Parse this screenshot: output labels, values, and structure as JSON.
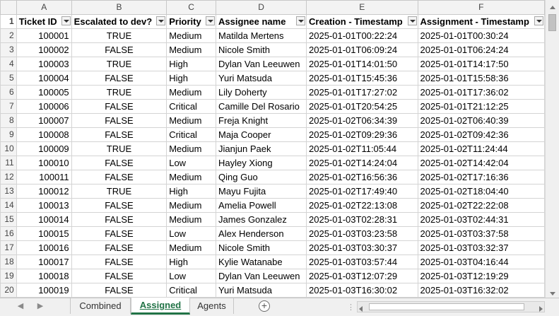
{
  "columns": [
    "A",
    "B",
    "C",
    "D",
    "E",
    "F"
  ],
  "row_numbers": [
    1,
    2,
    3,
    4,
    5,
    6,
    7,
    8,
    9,
    10,
    11,
    12,
    13,
    14,
    15,
    16,
    17,
    18,
    19,
    20
  ],
  "headers": {
    "ticket_id": "Ticket ID",
    "escalated": "Escalated to dev?",
    "priority": "Priority",
    "assignee": "Assignee name",
    "creation": "Creation - Timestamp",
    "assignment": "Assignment - Timestamp"
  },
  "rows": [
    {
      "id": "100001",
      "esc": "TRUE",
      "pri": "Medium",
      "name": "Matilda Mertens",
      "created": "2025-01-01T00:22:24",
      "assigned": "2025-01-01T00:30:24"
    },
    {
      "id": "100002",
      "esc": "FALSE",
      "pri": "Medium",
      "name": "Nicole Smith",
      "created": "2025-01-01T06:09:24",
      "assigned": "2025-01-01T06:24:24"
    },
    {
      "id": "100003",
      "esc": "TRUE",
      "pri": "High",
      "name": "Dylan Van Leeuwen",
      "created": "2025-01-01T14:01:50",
      "assigned": "2025-01-01T14:17:50"
    },
    {
      "id": "100004",
      "esc": "FALSE",
      "pri": "High",
      "name": "Yuri Matsuda",
      "created": "2025-01-01T15:45:36",
      "assigned": "2025-01-01T15:58:36"
    },
    {
      "id": "100005",
      "esc": "TRUE",
      "pri": "Medium",
      "name": "Lily Doherty",
      "created": "2025-01-01T17:27:02",
      "assigned": "2025-01-01T17:36:02"
    },
    {
      "id": "100006",
      "esc": "FALSE",
      "pri": "Critical",
      "name": "Camille Del Rosario",
      "created": "2025-01-01T20:54:25",
      "assigned": "2025-01-01T21:12:25"
    },
    {
      "id": "100007",
      "esc": "FALSE",
      "pri": "Medium",
      "name": "Freja Knight",
      "created": "2025-01-02T06:34:39",
      "assigned": "2025-01-02T06:40:39"
    },
    {
      "id": "100008",
      "esc": "FALSE",
      "pri": "Critical",
      "name": "Maja Cooper",
      "created": "2025-01-02T09:29:36",
      "assigned": "2025-01-02T09:42:36"
    },
    {
      "id": "100009",
      "esc": "TRUE",
      "pri": "Medium",
      "name": "Jianjun Paek",
      "created": "2025-01-02T11:05:44",
      "assigned": "2025-01-02T11:24:44"
    },
    {
      "id": "100010",
      "esc": "FALSE",
      "pri": "Low",
      "name": "Hayley Xiong",
      "created": "2025-01-02T14:24:04",
      "assigned": "2025-01-02T14:42:04"
    },
    {
      "id": "100011",
      "esc": "FALSE",
      "pri": "Medium",
      "name": "Qing Guo",
      "created": "2025-01-02T16:56:36",
      "assigned": "2025-01-02T17:16:36"
    },
    {
      "id": "100012",
      "esc": "TRUE",
      "pri": "High",
      "name": "Mayu Fujita",
      "created": "2025-01-02T17:49:40",
      "assigned": "2025-01-02T18:04:40"
    },
    {
      "id": "100013",
      "esc": "FALSE",
      "pri": "Medium",
      "name": "Amelia Powell",
      "created": "2025-01-02T22:13:08",
      "assigned": "2025-01-02T22:22:08"
    },
    {
      "id": "100014",
      "esc": "FALSE",
      "pri": "Medium",
      "name": "James Gonzalez",
      "created": "2025-01-03T02:28:31",
      "assigned": "2025-01-03T02:44:31"
    },
    {
      "id": "100015",
      "esc": "FALSE",
      "pri": "Low",
      "name": "Alex Henderson",
      "created": "2025-01-03T03:23:58",
      "assigned": "2025-01-03T03:37:58"
    },
    {
      "id": "100016",
      "esc": "FALSE",
      "pri": "Medium",
      "name": "Nicole Smith",
      "created": "2025-01-03T03:30:37",
      "assigned": "2025-01-03T03:32:37"
    },
    {
      "id": "100017",
      "esc": "FALSE",
      "pri": "High",
      "name": "Kylie Watanabe",
      "created": "2025-01-03T03:57:44",
      "assigned": "2025-01-03T04:16:44"
    },
    {
      "id": "100018",
      "esc": "FALSE",
      "pri": "Low",
      "name": "Dylan Van Leeuwen",
      "created": "2025-01-03T12:07:29",
      "assigned": "2025-01-03T12:19:29"
    },
    {
      "id": "100019",
      "esc": "FALSE",
      "pri": "Critical",
      "name": "Yuri Matsuda",
      "created": "2025-01-03T16:30:02",
      "assigned": "2025-01-03T16:32:02"
    }
  ],
  "tabs": {
    "combined": "Combined",
    "assigned": "Assigned",
    "agents": "Agents",
    "add": "+"
  },
  "colors": {
    "active_tab": "#217346",
    "gridline": "#d4d4d4",
    "header_bg": "#f3f3f3"
  },
  "icons": [
    "filter-dropdown-icon",
    "scroll-up-icon",
    "scroll-down-icon",
    "scroll-left-icon",
    "scroll-right-icon",
    "nav-prev-sheet-icon",
    "nav-next-sheet-icon",
    "add-sheet-icon"
  ]
}
